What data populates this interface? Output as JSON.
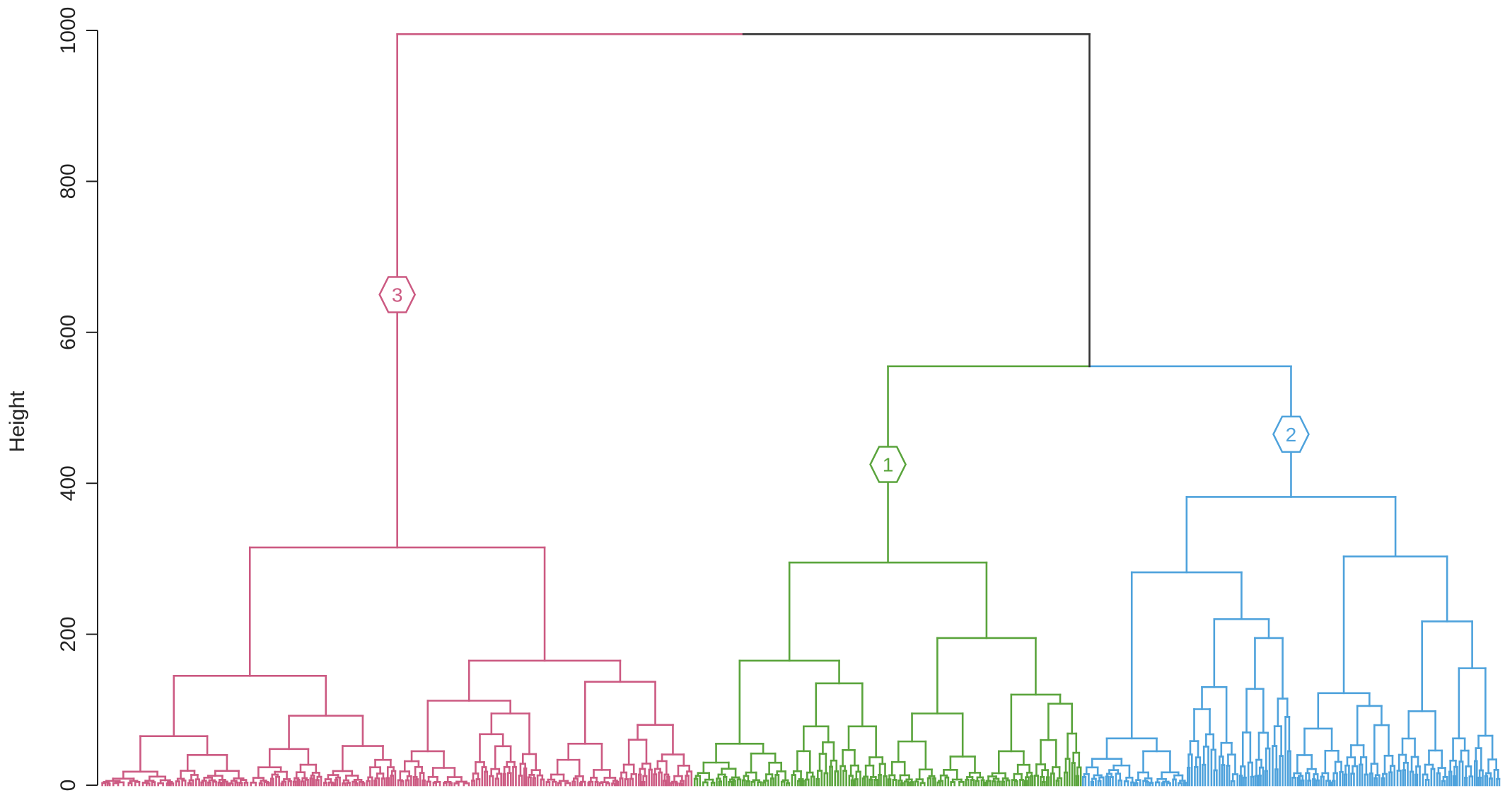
{
  "chart_data": {
    "type": "dendrogram",
    "title": "",
    "xlabel": "",
    "ylabel": "Height",
    "ylim": [
      0,
      1000
    ],
    "yticks": [
      "0",
      "200",
      "400",
      "600",
      "800",
      "1000"
    ],
    "root": {
      "height": 995,
      "color": "#333333"
    },
    "cluster_split": {
      "left": 3,
      "right_group": [
        1,
        2
      ],
      "height": 555
    },
    "clusters": [
      {
        "id": "3",
        "label": "3",
        "color": "#cc5a82",
        "height": 315,
        "badge_height": 650,
        "subclusters": [
          {
            "height": 145,
            "children": [
              {
                "height": 65,
                "children": [
                  {
                    "height": 18
                  },
                  {
                    "height": 40
                  }
                ]
              },
              {
                "height": 92,
                "children": [
                  {
                    "height": 48
                  },
                  {
                    "height": 52
                  }
                ]
              }
            ]
          },
          {
            "height": 165,
            "children": [
              {
                "height": 112,
                "children": [
                  {
                    "height": 45
                  },
                  {
                    "height": 95
                  }
                ]
              },
              {
                "height": 137,
                "children": [
                  {
                    "height": 55
                  },
                  {
                    "height": 80
                  }
                ]
              }
            ]
          }
        ]
      },
      {
        "id": "1",
        "label": "1",
        "color": "#5aa43c",
        "height": 295,
        "badge_height": 425,
        "subclusters": [
          {
            "height": 165,
            "children": [
              {
                "height": 55,
                "children": [
                  {
                    "height": 30
                  },
                  {
                    "height": 42
                  }
                ]
              },
              {
                "height": 135,
                "children": [
                  {
                    "height": 78
                  },
                  {
                    "height": 78
                  }
                ]
              }
            ]
          },
          {
            "height": 195,
            "children": [
              {
                "height": 95,
                "children": [
                  {
                    "height": 58
                  },
                  {
                    "height": 38
                  }
                ]
              },
              {
                "height": 120,
                "children": [
                  {
                    "height": 45
                  },
                  {
                    "height": 108
                  }
                ]
              }
            ]
          }
        ]
      },
      {
        "id": "2",
        "label": "2",
        "color": "#4ea2dc",
        "height": 382,
        "badge_height": 465,
        "subclusters": [
          {
            "height": 282,
            "children": [
              {
                "height": 62,
                "children": [
                  {
                    "height": 35
                  },
                  {
                    "height": 45
                  }
                ]
              },
              {
                "height": 220,
                "children": [
                  {
                    "height": 130
                  },
                  {
                    "height": 195
                  }
                ]
              }
            ]
          },
          {
            "height": 303,
            "children": [
              {
                "height": 122,
                "children": [
                  {
                    "height": 75
                  },
                  {
                    "height": 105
                  }
                ]
              },
              {
                "height": 217,
                "children": [
                  {
                    "height": 98
                  },
                  {
                    "height": 155
                  }
                ]
              }
            ]
          }
        ]
      }
    ]
  }
}
